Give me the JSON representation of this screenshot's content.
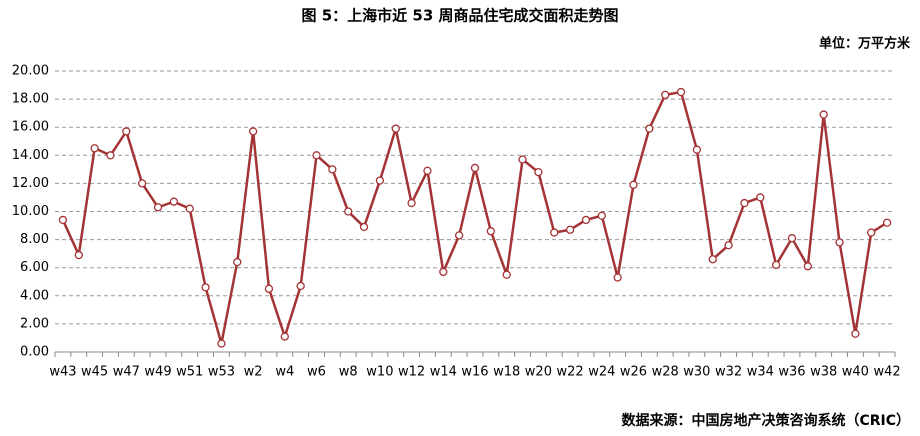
{
  "chart_data": {
    "type": "line",
    "title": "图 5：上海市近 53 周商品住宅成交面积走势图",
    "unit_label": "单位：万平方米",
    "source": "数据来源：中国房地产决策咨询系统（CRIC）",
    "categories": [
      "w43",
      null,
      "w45",
      null,
      "w47",
      null,
      "w49",
      null,
      "w51",
      null,
      "w53",
      null,
      "w2",
      null,
      "w4",
      null,
      "w6",
      null,
      "w8",
      null,
      "w10",
      null,
      "w12",
      null,
      "w14",
      null,
      "w16",
      null,
      "w18",
      null,
      "w20",
      null,
      "w22",
      null,
      "w24",
      null,
      "w26",
      null,
      "w28",
      null,
      "w30",
      null,
      "w32",
      null,
      "w34",
      null,
      "w36",
      null,
      "w38",
      null,
      "w40",
      null,
      "w42"
    ],
    "series": [
      {
        "name": "成交面积",
        "color": "#a33335",
        "values": [
          9.4,
          6.9,
          14.5,
          14.0,
          15.7,
          12.0,
          10.3,
          10.7,
          10.2,
          4.6,
          0.6,
          6.4,
          15.7,
          4.5,
          1.1,
          4.7,
          14.0,
          13.0,
          10.0,
          8.9,
          12.2,
          15.9,
          10.6,
          12.9,
          5.7,
          8.3,
          13.1,
          8.6,
          5.5,
          13.7,
          12.8,
          8.5,
          8.7,
          9.4,
          9.7,
          5.3,
          11.9,
          15.9,
          18.3,
          18.5,
          14.4,
          6.6,
          7.6,
          10.6,
          11.0,
          6.2,
          8.1,
          6.1,
          16.9,
          7.8,
          1.3,
          8.5,
          9.2
        ]
      }
    ],
    "ylim": [
      0,
      20
    ],
    "yticks": [
      {
        "value": 0,
        "label": "0.00"
      },
      {
        "value": 2,
        "label": "2.00"
      },
      {
        "value": 4,
        "label": "4.00"
      },
      {
        "value": 6,
        "label": "6.00"
      },
      {
        "value": 8,
        "label": "8.00"
      },
      {
        "value": 10,
        "label": "10.00"
      },
      {
        "value": 12,
        "label": "12.00"
      },
      {
        "value": 14,
        "label": "14.00"
      },
      {
        "value": 16,
        "label": "16.00"
      },
      {
        "value": 18,
        "label": "18.00"
      },
      {
        "value": 20,
        "label": "20.00"
      }
    ],
    "grid": true
  }
}
